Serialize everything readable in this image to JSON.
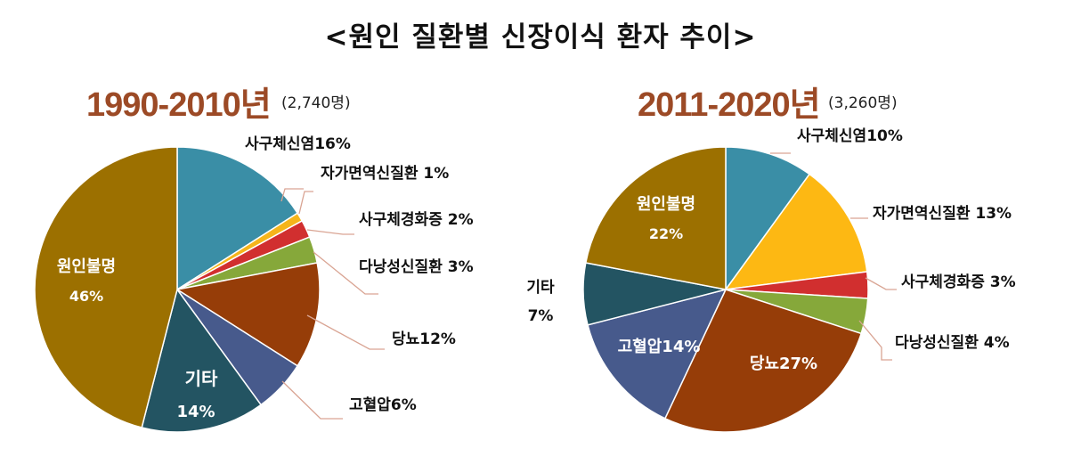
{
  "title": "<원인 질환별 신장이식 환자 추이>",
  "chart_data": [
    {
      "type": "pie",
      "period": "1990-2010년",
      "total": "(2,740명)",
      "slices": [
        {
          "name": "사구체신염",
          "pct": "16%",
          "value": 16,
          "color": "#3a8ea6"
        },
        {
          "name": "자가면역신질환",
          "pct": "1%",
          "value": 1,
          "color": "#f5b51b"
        },
        {
          "name": "사구체경화증",
          "pct": "2%",
          "value": 2,
          "color": "#d12f2f"
        },
        {
          "name": "다낭성신질환",
          "pct": "3%",
          "value": 3,
          "color": "#86a83a"
        },
        {
          "name": "당뇨",
          "pct": "12%",
          "value": 12,
          "color": "#963d08"
        },
        {
          "name": "고혈압",
          "pct": "6%",
          "value": 6,
          "color": "#475a8c"
        },
        {
          "name": "기타",
          "pct": "14%",
          "value": 14,
          "color": "#235462"
        },
        {
          "name": "원인불명",
          "pct": "46%",
          "value": 46,
          "color": "#9c7000"
        }
      ]
    },
    {
      "type": "pie",
      "period": "2011-2020년",
      "total": "(3,260명)",
      "slices": [
        {
          "name": "사구체신염",
          "pct": "10%",
          "value": 10,
          "color": "#3a8ea6"
        },
        {
          "name": "자가면역신질환",
          "pct": "13%",
          "value": 13,
          "color": "#fdb813"
        },
        {
          "name": "사구체경화증",
          "pct": "3%",
          "value": 3,
          "color": "#d12f2f"
        },
        {
          "name": "다낭성신질환",
          "pct": "4%",
          "value": 4,
          "color": "#86a83a"
        },
        {
          "name": "당뇨",
          "pct": "27%",
          "value": 27,
          "color": "#963d08"
        },
        {
          "name": "고혈압",
          "pct": "14%",
          "value": 14,
          "color": "#475a8c"
        },
        {
          "name": "기타",
          "pct": "7%",
          "value": 7,
          "color": "#235462"
        },
        {
          "name": "원인불명",
          "pct": "22%",
          "value": 22,
          "color": "#9c7000"
        }
      ]
    }
  ]
}
